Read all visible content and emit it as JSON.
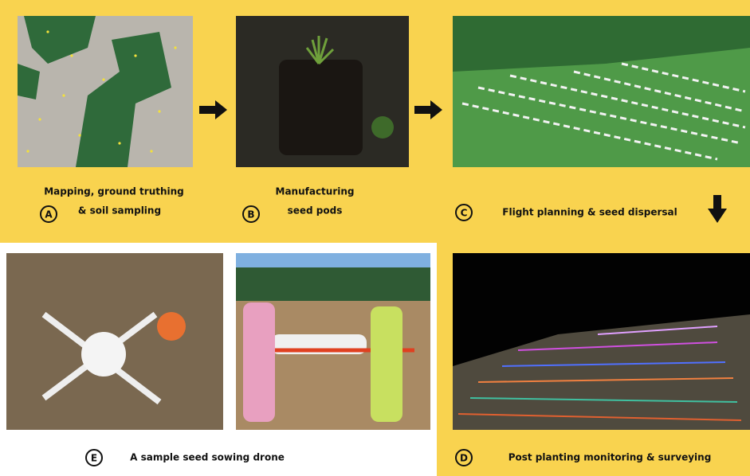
{
  "steps": [
    {
      "letter": "A",
      "lines": [
        "Mapping, ground truthing",
        "& soil sampling"
      ]
    },
    {
      "letter": "B",
      "lines": [
        "Manufacturing",
        "seed pods"
      ]
    },
    {
      "letter": "C",
      "lines": [
        "Flight planning & seed dispersal"
      ]
    },
    {
      "letter": "D",
      "lines": [
        "Post planting monitoring & surveying"
      ]
    },
    {
      "letter": "E",
      "lines": [
        "A sample seed sowing drone"
      ]
    }
  ]
}
